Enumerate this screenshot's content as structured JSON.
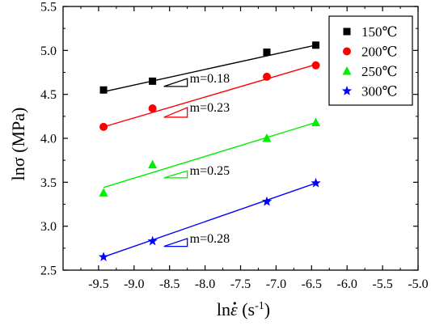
{
  "chart_data": {
    "type": "scatter",
    "title": "",
    "xlabel_base": "ln",
    "xlabel_symbol": "ε",
    "xlabel_unit_open": " (s",
    "xlabel_unit_exp": "-1",
    "xlabel_unit_close": ")",
    "ylabel": "lnσ (MPa)",
    "xlim": [
      -10,
      -5
    ],
    "ylim": [
      2.5,
      5.5
    ],
    "x_ticks": [
      -9.5,
      -9.0,
      -8.5,
      -8.0,
      -7.5,
      -7.0,
      -6.5,
      -6.0,
      -5.5,
      -5.0
    ],
    "x_tick_labels": [
      "-9.5",
      "-9.0",
      "-8.5",
      "-8.0",
      "-7.5",
      "-7.0",
      "-6.5",
      "-6.0",
      "-5.5",
      "-5.0"
    ],
    "y_ticks": [
      2.5,
      3.0,
      3.5,
      4.0,
      4.5,
      5.0,
      5.5
    ],
    "y_tick_labels": [
      "2.5",
      "3.0",
      "3.5",
      "4.0",
      "4.5",
      "5.0",
      "5.5"
    ],
    "grid": false,
    "legend_position": "top-right",
    "series": [
      {
        "name": "150℃",
        "color": "#000000",
        "marker": "square",
        "x": [
          -9.43,
          -8.74,
          -7.13,
          -6.44
        ],
        "y": [
          4.55,
          4.65,
          4.98,
          5.06
        ],
        "fit": [
          [
            -9.43,
            4.53
          ],
          [
            -6.44,
            5.06
          ]
        ]
      },
      {
        "name": "200℃",
        "color": "#ff0000",
        "marker": "circle",
        "x": [
          -9.43,
          -8.74,
          -7.13,
          -6.44
        ],
        "y": [
          4.13,
          4.34,
          4.7,
          4.83
        ],
        "fit": [
          [
            -9.43,
            4.13
          ],
          [
            -6.44,
            4.84
          ]
        ]
      },
      {
        "name": "250℃",
        "color": "#00ee00",
        "marker": "triangle",
        "x": [
          -9.43,
          -8.74,
          -7.13,
          -6.44
        ],
        "y": [
          3.38,
          3.7,
          4.0,
          4.18
        ],
        "fit": [
          [
            -9.43,
            3.44
          ],
          [
            -6.44,
            4.18
          ]
        ]
      },
      {
        "name": "300℃",
        "color": "#0000ff",
        "marker": "star",
        "x": [
          -9.43,
          -8.74,
          -7.13,
          -6.44
        ],
        "y": [
          2.65,
          2.83,
          3.28,
          3.49
        ],
        "fit": [
          [
            -9.43,
            2.65
          ],
          [
            -6.44,
            3.49
          ]
        ]
      }
    ],
    "annotations": [
      {
        "text": "m=0.18",
        "color": "#000000",
        "tri_x": [
          -8.58,
          -8.25
        ],
        "tri_y": [
          4.59,
          4.68
        ]
      },
      {
        "text": "m=0.23",
        "color": "#ff0000",
        "tri_x": [
          -8.58,
          -8.25
        ],
        "tri_y": [
          4.24,
          4.35
        ]
      },
      {
        "text": "m=0.25",
        "color": "#00ee00",
        "tri_x": [
          -8.58,
          -8.25
        ],
        "tri_y": [
          3.55,
          3.63
        ]
      },
      {
        "text": "m=0.28",
        "color": "#0000ff",
        "tri_x": [
          -8.58,
          -8.25
        ],
        "tri_y": [
          2.77,
          2.86
        ]
      }
    ]
  }
}
